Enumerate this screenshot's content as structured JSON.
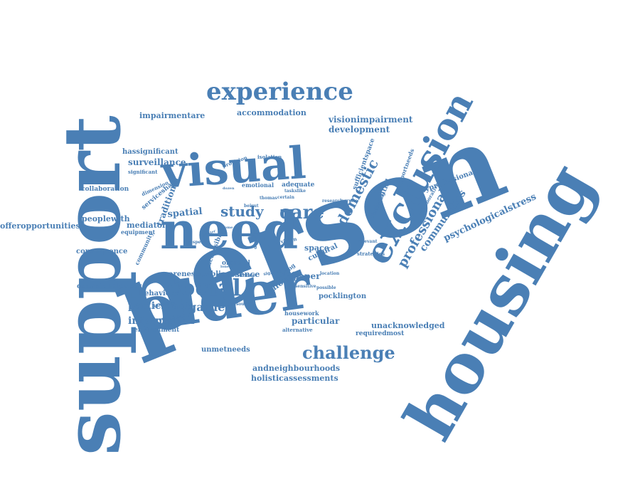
{
  "cloud": {
    "color": "#4a7fb5",
    "words": [
      {
        "text": "person"
      },
      {
        "text": "support"
      },
      {
        "text": "housing"
      },
      {
        "text": "older"
      },
      {
        "text": "need"
      },
      {
        "text": "visual"
      },
      {
        "text": "exclusion"
      },
      {
        "text": "experience"
      },
      {
        "text": "social"
      },
      {
        "text": "challenge"
      },
      {
        "text": "care"
      },
      {
        "text": "study"
      },
      {
        "text": "domestic"
      },
      {
        "text": "professional"
      },
      {
        "text": "communities"
      },
      {
        "text": "garden"
      },
      {
        "text": "information"
      },
      {
        "text": "participant"
      },
      {
        "text": "spatial"
      },
      {
        "text": "traditional"
      },
      {
        "text": "surveillance"
      },
      {
        "text": "development"
      },
      {
        "text": "visionimpairment"
      },
      {
        "text": "accommodation"
      },
      {
        "text": "impairmentare"
      },
      {
        "text": "hassignificant"
      },
      {
        "text": "peoplewith"
      },
      {
        "text": "mediator"
      },
      {
        "text": "offeropportunities"
      },
      {
        "text": "consequence"
      },
      {
        "text": "occasionalpaper"
      },
      {
        "text": "behaviour"
      },
      {
        "text": "awareness"
      },
      {
        "text": "public"
      },
      {
        "text": "environment"
      },
      {
        "text": "unmetneeds"
      },
      {
        "text": "andneighbourhoods"
      },
      {
        "text": "holisticassessments"
      },
      {
        "text": "unacknowledged"
      },
      {
        "text": "requiredmost"
      },
      {
        "text": "pocklington"
      },
      {
        "text": "particular"
      },
      {
        "text": "house"
      },
      {
        "text": "paper"
      },
      {
        "text": "space"
      },
      {
        "text": "cultural"
      },
      {
        "text": "psychologicalstress"
      },
      {
        "text": "byprofessionals"
      },
      {
        "text": "residential"
      },
      {
        "text": "supportneeds"
      },
      {
        "text": "sufficientspace"
      },
      {
        "text": "adequate"
      },
      {
        "text": "emotional"
      },
      {
        "text": "isolation"
      },
      {
        "text": "provision"
      },
      {
        "text": "collaboration"
      },
      {
        "text": "serviceshave"
      },
      {
        "text": "orsocial"
      },
      {
        "text": "presence"
      },
      {
        "text": "evidence"
      },
      {
        "text": "community"
      },
      {
        "text": "accessible"
      },
      {
        "text": "equipment"
      },
      {
        "text": "significant"
      },
      {
        "text": "dimension"
      },
      {
        "text": "vulnerable"
      },
      {
        "text": "alternative"
      },
      {
        "text": "housework"
      },
      {
        "text": "strategies"
      },
      {
        "text": "collaborative"
      },
      {
        "text": "research"
      },
      {
        "text": "service"
      },
      {
        "text": "meeting"
      },
      {
        "text": "relevant"
      },
      {
        "text": "possible"
      },
      {
        "text": "location"
      },
      {
        "text": "initiative"
      },
      {
        "text": "resource"
      },
      {
        "text": "sensitive"
      },
      {
        "text": "sighted"
      },
      {
        "text": "respect"
      },
      {
        "text": "greater"
      },
      {
        "text": "dozen"
      },
      {
        "text": "vision"
      },
      {
        "text": "beirut"
      },
      {
        "text": "thomas"
      },
      {
        "text": "certain"
      },
      {
        "text": "taskslike"
      },
      {
        "text": "lonely"
      },
      {
        "text": "recycling"
      },
      {
        "text": "shape"
      },
      {
        "text": "home"
      },
      {
        "text": "domain"
      }
    ]
  }
}
